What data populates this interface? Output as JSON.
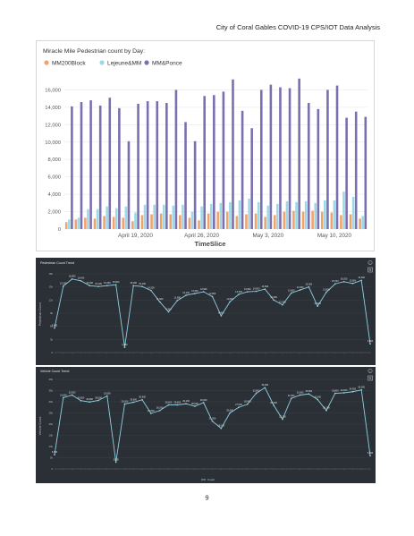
{
  "page": {
    "header": "City of Coral Gables COVID-19 CPS/IOT Data Analysis",
    "page_number": "9"
  },
  "colors": {
    "mm200block": "#f0a46c",
    "lejeune": "#9fd8e6",
    "mmponce": "#7b6fb0",
    "dark_bg": "#2b3036",
    "trend_line": "#8fd0e0",
    "label_text": "#e6e6e6"
  },
  "chart_data": [
    {
      "type": "bar",
      "title": "Miracle Mile Pedestrian count by Day:",
      "xlabel": "TimeSlice",
      "ylabel": "",
      "ylim": [
        0,
        18000
      ],
      "yticks": [
        "0",
        "2,000",
        "4,000",
        "6,000",
        "8,000",
        "10,000",
        "12,000",
        "14,000",
        "16,000"
      ],
      "x_tick_labels": [
        {
          "label": "April 19, 2020",
          "index": 7
        },
        {
          "label": "April 26, 2020",
          "index": 14
        },
        {
          "label": "May 3, 2020",
          "index": 21
        },
        {
          "label": "May 10, 2020",
          "index": 28
        }
      ],
      "grid": true,
      "legend_position": "top-left",
      "series": [
        {
          "name": "MM200Block",
          "color_key": "mm200block",
          "values": [
            800,
            1100,
            1300,
            1200,
            1500,
            1400,
            1300,
            900,
            1600,
            1700,
            1800,
            1700,
            1600,
            1300,
            1000,
            1800,
            2000,
            2000,
            1500,
            1700,
            1800,
            1400,
            1600,
            2000,
            2100,
            2000,
            2100,
            2000,
            1900,
            1600,
            1700,
            1200
          ]
        },
        {
          "name": "Lejeune&MM",
          "color_key": "lejeune",
          "values": [
            1100,
            1300,
            2300,
            2300,
            2600,
            2400,
            2600,
            1900,
            2800,
            2800,
            2800,
            2700,
            2800,
            2000,
            2600,
            2900,
            3000,
            3100,
            3300,
            3500,
            3100,
            2700,
            2900,
            3200,
            3100,
            3200,
            3000,
            3300,
            3300,
            4300,
            3700,
            1500
          ]
        },
        {
          "name": "MM&Ponce",
          "color_key": "mmponce",
          "values": [
            14100,
            14600,
            14800,
            14200,
            15100,
            13900,
            10100,
            14400,
            14700,
            14700,
            14500,
            16000,
            12300,
            10100,
            15300,
            15400,
            15800,
            17200,
            13600,
            11600,
            16000,
            16600,
            16300,
            16200,
            17300,
            14500,
            13800,
            16000,
            16500,
            12800,
            13500,
            12900
          ]
        }
      ]
    },
    {
      "type": "line",
      "title": "Pedestrian Count Trend",
      "ylabel": "Pedestrian Count",
      "ylim": [
        0,
        18000
      ],
      "yticks": [
        "0",
        "3k",
        "6k",
        "9k",
        "12k",
        "15k",
        "18k"
      ],
      "values": [
        5600,
        15200,
        16800,
        16400,
        15300,
        15100,
        15300,
        15500,
        1200,
        15300,
        15100,
        14200,
        11600,
        9300,
        11900,
        13100,
        13500,
        13900,
        12800,
        8400,
        11600,
        13300,
        13900,
        14000,
        14500,
        12000,
        10900,
        13600,
        14300,
        15000,
        10600,
        13800,
        15700,
        16200,
        15800,
        16500,
        2000
      ]
    },
    {
      "type": "line",
      "title": "Vehicle Count Trend",
      "ylabel": "Vehicle Count",
      "ylim": [
        0,
        40000
      ],
      "yticks": [
        "0",
        "5k",
        "10k",
        "15k",
        "20k",
        "25k",
        "30k",
        "35k",
        "40k"
      ],
      "legend": [
        "Count"
      ],
      "values": [
        6300,
        31800,
        33000,
        30500,
        29900,
        30600,
        32600,
        3000,
        29000,
        29800,
        30900,
        24800,
        26100,
        28600,
        28600,
        29100,
        28000,
        29600,
        21300,
        18100,
        25000,
        27500,
        28900,
        33800,
        36300,
        28400,
        22200,
        31500,
        33000,
        33500,
        31000,
        26100,
        33800,
        34000,
        34500,
        35300,
        5900
      ]
    }
  ]
}
